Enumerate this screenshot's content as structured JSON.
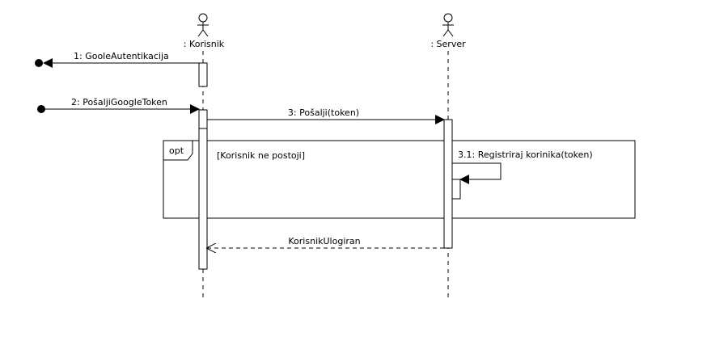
{
  "diagram": {
    "lifelines": [
      {
        "id": "korisnik",
        "label": ": Korisnik",
        "kind": "actor"
      },
      {
        "id": "server",
        "label": ": Server",
        "kind": "actor"
      }
    ],
    "messages": [
      {
        "id": "m1",
        "label": "1: GooleAutentikacija",
        "from": "korisnik",
        "to": "lost",
        "kind": "lost"
      },
      {
        "id": "m2",
        "label": "2: PošaljiGoogleToken",
        "from": "found",
        "to": "korisnik",
        "kind": "found"
      },
      {
        "id": "m3",
        "label": "3: Pošalji(token)",
        "from": "korisnik",
        "to": "server",
        "kind": "sync"
      },
      {
        "id": "m31",
        "label": "3.1: Registriraj korinika(token)",
        "from": "server",
        "to": "server",
        "kind": "self"
      },
      {
        "id": "mret",
        "label": "KorisnikUlogiran",
        "from": "server",
        "to": "korisnik",
        "kind": "return"
      }
    ],
    "fragment": {
      "operator": "opt",
      "guard": "[Korisnik ne postoji]"
    }
  }
}
